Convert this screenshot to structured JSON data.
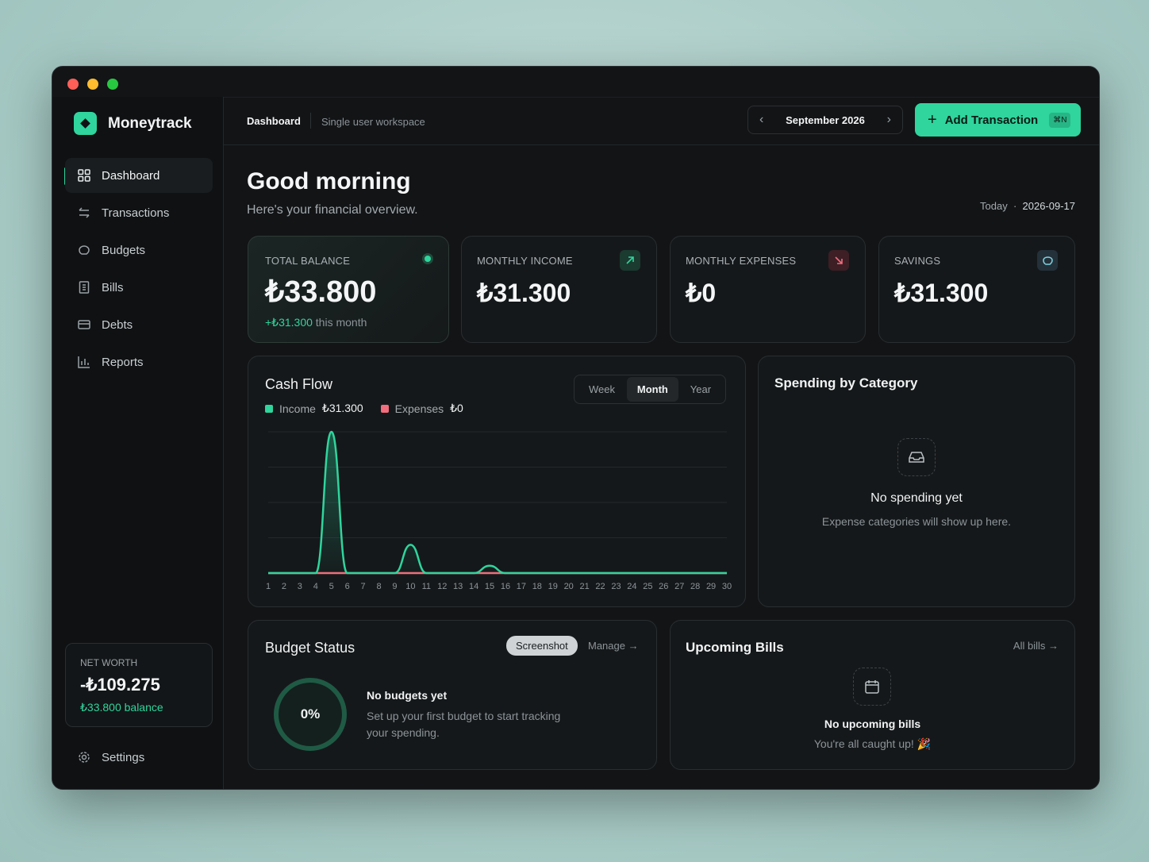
{
  "sidebar": {
    "brand": "Moneytrack",
    "nav": [
      "Dashboard",
      "Transactions",
      "Budgets",
      "Bills",
      "Debts",
      "Reports"
    ],
    "net_worth": {
      "label": "NET WORTH",
      "value": "-₺109.275",
      "balance": "₺33.800 balance"
    },
    "settings": "Settings"
  },
  "header": {
    "breadcrumb": "Dashboard",
    "workspace": "Single user workspace",
    "month": "September 2026",
    "add_button": "Add Transaction",
    "shortcut": "⌘N"
  },
  "greeting": {
    "title": "Good morning",
    "subtitle": "Here's your financial overview.",
    "today_label": "Today",
    "date": "2026-09-17"
  },
  "stats": [
    {
      "label": "TOTAL BALANCE",
      "value": "₺33.800",
      "change": "+₺31.300",
      "change_note": "this month"
    },
    {
      "label": "MONTHLY INCOME",
      "value": "₺31.300"
    },
    {
      "label": "MONTHLY EXPENSES",
      "value": "₺0"
    },
    {
      "label": "SAVINGS",
      "value": "₺31.300"
    }
  ],
  "chart_data": {
    "type": "area",
    "title": "Cash Flow",
    "ranges": [
      "Week",
      "Month",
      "Year"
    ],
    "active_range": 1,
    "categories": [
      "1",
      "2",
      "3",
      "4",
      "5",
      "6",
      "7",
      "8",
      "9",
      "10",
      "11",
      "12",
      "13",
      "14",
      "15",
      "16",
      "17",
      "18",
      "19",
      "20",
      "21",
      "22",
      "23",
      "24",
      "25",
      "26",
      "27",
      "28",
      "29",
      "30"
    ],
    "series": [
      {
        "name": "Income",
        "total": "₺31.300",
        "color": "#2fd59d",
        "values": [
          0,
          0,
          0,
          0,
          25000,
          0,
          0,
          0,
          0,
          5000,
          0,
          0,
          0,
          0,
          1300,
          0,
          0,
          0,
          0,
          0,
          0,
          0,
          0,
          0,
          0,
          0,
          0,
          0,
          0,
          0
        ]
      },
      {
        "name": "Expenses",
        "total": "₺0",
        "color": "#f26d7d",
        "values": [
          0,
          0,
          0,
          0,
          0,
          0,
          0,
          0,
          0,
          0,
          0,
          0,
          0,
          0,
          0,
          0,
          0,
          0,
          0,
          0,
          0,
          0,
          0,
          0,
          0,
          0,
          0,
          0,
          0,
          0
        ]
      }
    ],
    "ylim": [
      0,
      25000
    ],
    "grid": true
  },
  "spending": {
    "title": "Spending by Category",
    "empty_title": "No spending yet",
    "empty_text": "Expense categories will show up here."
  },
  "budget": {
    "title": "Budget Status",
    "badge": "Screenshot",
    "link": "Manage →",
    "percent": "0%",
    "empty_title": "No budgets yet",
    "empty_text": "Set up your first budget to start tracking your spending."
  },
  "bills": {
    "title": "Upcoming Bills",
    "link": "All bills →",
    "empty_title": "No upcoming bills",
    "empty_text": "You're all caught up! 🎉"
  }
}
